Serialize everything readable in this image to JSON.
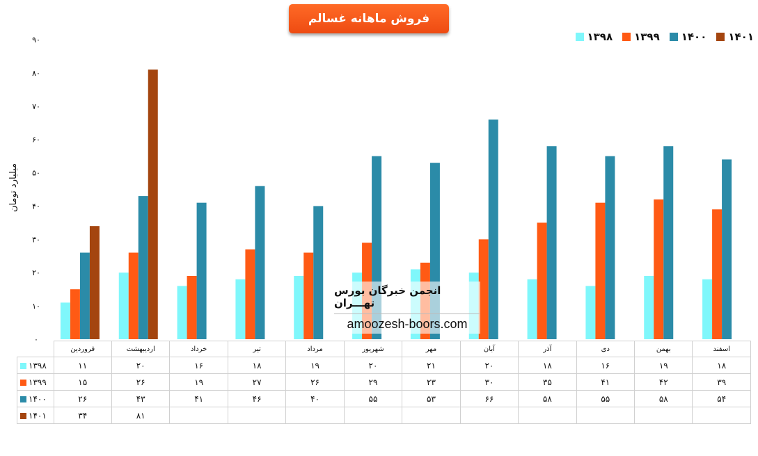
{
  "chart_data": {
    "type": "bar",
    "title": "فروش ماهانه غسالم",
    "ylabel": "میلیارد تومان",
    "ylim": [
      0,
      90
    ],
    "y_ticks": [
      "۰",
      "۱۰",
      "۲۰",
      "۳۰",
      "۴۰",
      "۵۰",
      "۶۰",
      "۷۰",
      "۸۰",
      "۹۰"
    ],
    "grid": false,
    "legend_position": "top-right",
    "categories": [
      "فروردین",
      "اردیبهشت",
      "خرداد",
      "تیر",
      "مرداد",
      "شهریور",
      "مهر",
      "آبان",
      "آذر",
      "دی",
      "بهمن",
      "اسفند"
    ],
    "series": [
      {
        "name": "۱۳۹۸",
        "color": "#7ff7fb",
        "values": [
          11,
          20,
          16,
          18,
          19,
          20,
          21,
          20,
          18,
          16,
          19,
          18
        ],
        "labels": [
          "۱۱",
          "۲۰",
          "۱۶",
          "۱۸",
          "۱۹",
          "۲۰",
          "۲۱",
          "۲۰",
          "۱۸",
          "۱۶",
          "۱۹",
          "۱۸"
        ]
      },
      {
        "name": "۱۳۹۹",
        "color": "#ff5a14",
        "values": [
          15,
          26,
          19,
          27,
          26,
          29,
          23,
          30,
          35,
          41,
          42,
          39
        ],
        "labels": [
          "۱۵",
          "۲۶",
          "۱۹",
          "۲۷",
          "۲۶",
          "۲۹",
          "۲۳",
          "۳۰",
          "۳۵",
          "۴۱",
          "۴۲",
          "۳۹"
        ]
      },
      {
        "name": "۱۴۰۰",
        "color": "#2b8ba8",
        "values": [
          26,
          43,
          41,
          46,
          40,
          55,
          53,
          66,
          58,
          55,
          58,
          54
        ],
        "labels": [
          "۲۶",
          "۴۳",
          "۴۱",
          "۴۶",
          "۴۰",
          "۵۵",
          "۵۳",
          "۶۶",
          "۵۸",
          "۵۵",
          "۵۸",
          "۵۴"
        ]
      },
      {
        "name": "۱۴۰۱",
        "color": "#a4450f",
        "values": [
          34,
          81,
          null,
          null,
          null,
          null,
          null,
          null,
          null,
          null,
          null,
          null
        ],
        "labels": [
          "۳۴",
          "۸۱",
          "",
          "",
          "",
          "",
          "",
          "",
          "",
          "",
          "",
          ""
        ]
      }
    ]
  },
  "watermark": {
    "title": "انجمن خبرگان بورس تهـــران",
    "url": "amoozesh-boors.com"
  }
}
